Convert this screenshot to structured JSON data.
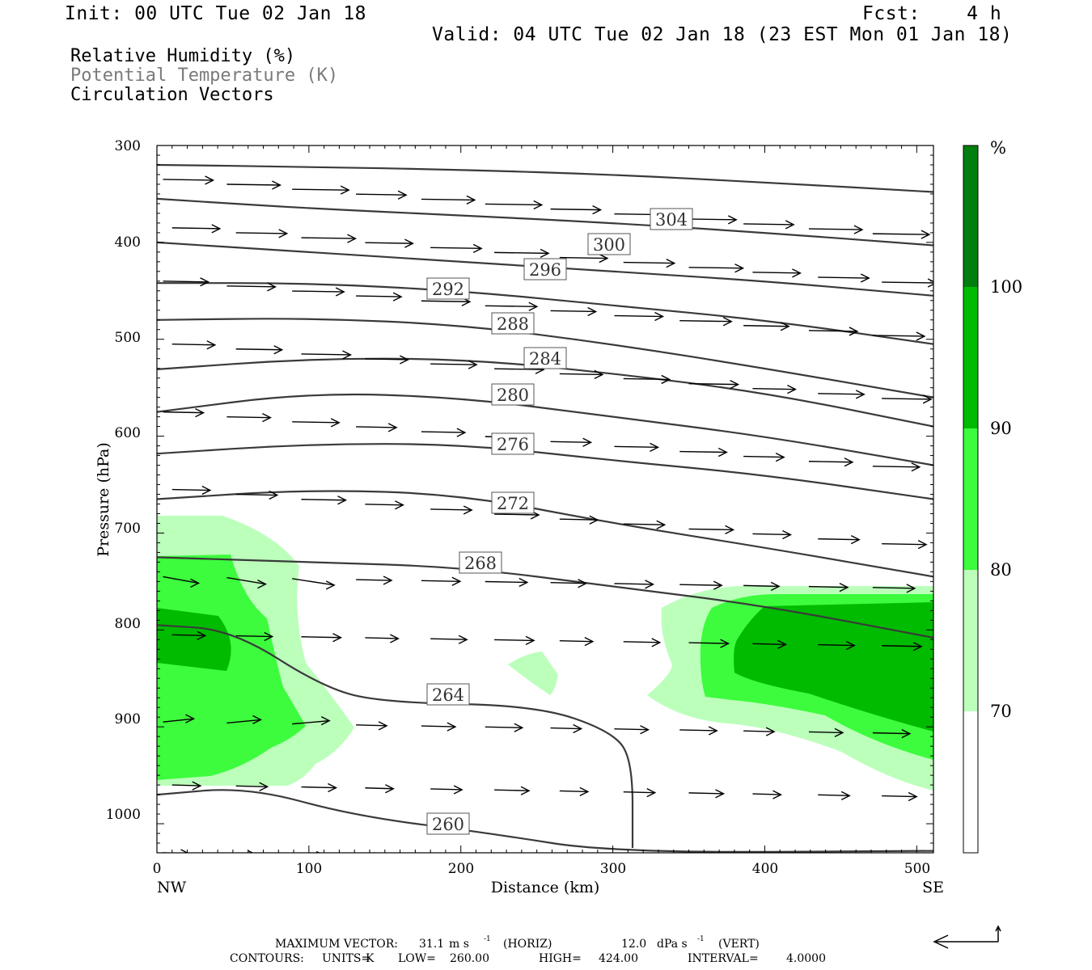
{
  "header": {
    "init": "Init: 00 UTC Tue 02 Jan 18",
    "fcst": "Fcst:    4 h",
    "valid": "Valid: 04 UTC Tue 02 Jan 18 (23 EST Mon 01 Jan 18)"
  },
  "legend_titles": [
    "Relative Humidity (%)",
    "Potential Temperature (K)",
    "Circulation Vectors"
  ],
  "colors": {
    "rh70": "#bbffbb",
    "rh80": "#3dfc3d",
    "rh90": "#00bb00",
    "rh100": "#007f0e",
    "theta": "#3a3a3a",
    "theta_title": "#7a7a7a"
  },
  "chart_data": {
    "type": "cross-section",
    "xlabel": "Distance (km)",
    "ylabel": "Pressure (hPa)",
    "x_ticks": [
      "0",
      "100",
      "200",
      "300",
      "400",
      "500"
    ],
    "y_ticks": [
      "300",
      "400",
      "500",
      "600",
      "700",
      "800",
      "900",
      "1000"
    ],
    "xlim": [
      0,
      511
    ],
    "ylim": [
      300,
      1030
    ],
    "endpoints": {
      "left": "NW",
      "right": "SE"
    },
    "colorbar": {
      "unit": "%",
      "levels": [
        "70",
        "80",
        "90",
        "100"
      ],
      "colors": [
        "#bbffbb",
        "#3dfc3d",
        "#00bb00",
        "#007f0e"
      ]
    },
    "theta_labels": [
      "304",
      "300",
      "296",
      "292",
      "288",
      "284",
      "280",
      "276",
      "272",
      "268",
      "264",
      "260"
    ],
    "theta_contours": [
      {
        "level": 304,
        "points": [
          [
            0,
            320
          ],
          [
            100,
            322
          ],
          [
            200,
            325
          ],
          [
            300,
            330
          ],
          [
            400,
            338
          ],
          [
            511,
            348
          ]
        ]
      },
      {
        "level": 300,
        "points": [
          [
            0,
            355
          ],
          [
            100,
            365
          ],
          [
            200,
            372
          ],
          [
            300,
            380
          ],
          [
            400,
            390
          ],
          [
            511,
            403
          ]
        ]
      },
      {
        "level": 296,
        "points": [
          [
            0,
            400
          ],
          [
            100,
            410
          ],
          [
            200,
            420
          ],
          [
            300,
            430
          ],
          [
            400,
            440
          ],
          [
            511,
            455
          ]
        ]
      },
      {
        "level": 292,
        "points": [
          [
            0,
            442
          ],
          [
            100,
            442
          ],
          [
            200,
            450
          ],
          [
            300,
            465
          ],
          [
            400,
            480
          ],
          [
            511,
            505
          ]
        ]
      },
      {
        "level": 288,
        "points": [
          [
            0,
            480
          ],
          [
            100,
            478
          ],
          [
            200,
            485
          ],
          [
            300,
            505
          ],
          [
            400,
            530
          ],
          [
            511,
            560
          ]
        ]
      },
      {
        "level": 284,
        "points": [
          [
            0,
            531
          ],
          [
            100,
            520
          ],
          [
            200,
            520
          ],
          [
            300,
            535
          ],
          [
            400,
            555
          ],
          [
            511,
            590
          ]
        ]
      },
      {
        "level": 280,
        "points": [
          [
            0,
            575
          ],
          [
            100,
            555
          ],
          [
            200,
            560
          ],
          [
            300,
            580
          ],
          [
            400,
            600
          ],
          [
            511,
            630
          ]
        ]
      },
      {
        "level": 276,
        "points": [
          [
            0,
            618
          ],
          [
            100,
            608
          ],
          [
            200,
            608
          ],
          [
            300,
            625
          ],
          [
            400,
            640
          ],
          [
            511,
            665
          ]
        ]
      },
      {
        "level": 272,
        "points": [
          [
            0,
            665
          ],
          [
            100,
            655
          ],
          [
            200,
            660
          ],
          [
            300,
            690
          ],
          [
            400,
            715
          ],
          [
            511,
            745
          ]
        ]
      },
      {
        "level": 268,
        "points": [
          [
            0,
            725
          ],
          [
            100,
            730
          ],
          [
            200,
            735
          ],
          [
            300,
            755
          ],
          [
            400,
            775
          ],
          [
            511,
            808
          ]
        ]
      },
      {
        "level": 264,
        "points": [
          [
            0,
            795
          ],
          [
            50,
            800
          ],
          [
            110,
            860
          ],
          [
            150,
            875
          ],
          [
            250,
            878
          ],
          [
            300,
            905
          ],
          [
            313,
            935
          ],
          [
            313,
            1025
          ]
        ]
      },
      {
        "level": 260,
        "points": [
          [
            0,
            970
          ],
          [
            60,
            962
          ],
          [
            130,
            992
          ],
          [
            220,
            1010
          ],
          [
            300,
            1030
          ],
          [
            511,
            1028
          ]
        ]
      }
    ],
    "max_vector": {
      "horiz": "31.1",
      "horiz_unit": "m s",
      "vert": "12.0",
      "vert_unit": "dPa s"
    },
    "contour_info": {
      "units": "K",
      "low": "260.00",
      "high": "424.00",
      "interval": "4.0000"
    }
  },
  "footer": {
    "max_vector_label": "MAXIMUM VECTOR:",
    "horiz_suffix": "(HORIZ)",
    "vert_suffix": "(VERT)",
    "contours_label": "CONTOURS:",
    "units_label": "UNITS=",
    "low_label": "LOW=",
    "high_label": "HIGH=",
    "interval_label": "INTERVAL=",
    "exponent": "-1"
  }
}
